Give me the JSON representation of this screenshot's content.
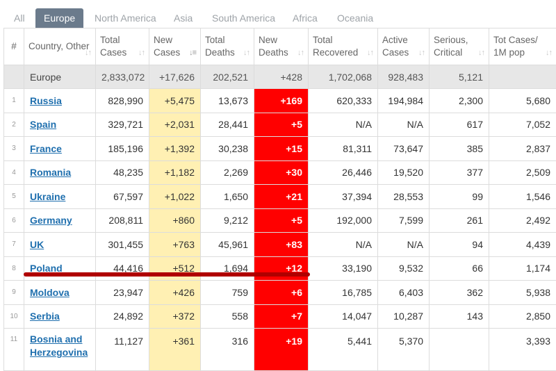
{
  "tabs": [
    "All",
    "Europe",
    "North America",
    "Asia",
    "South America",
    "Africa",
    "Oceania"
  ],
  "active_tab": "Europe",
  "headers": [
    "#",
    "Country, Other",
    "Total Cases",
    "New Cases",
    "Total Deaths",
    "New Deaths",
    "Total Recovered",
    "Active Cases",
    "Serious, Critical",
    "Tot Cases/ 1M pop"
  ],
  "total_row": {
    "country": "Europe",
    "total_cases": "2,833,072",
    "new_cases": "+17,626",
    "total_deaths": "202,521",
    "new_deaths": "+428",
    "total_recovered": "1,702,068",
    "active_cases": "928,483",
    "serious": "5,121",
    "per_million": ""
  },
  "rows": [
    {
      "num": "1",
      "country": "Russia",
      "total_cases": "828,990",
      "new_cases": "+5,475",
      "total_deaths": "13,673",
      "new_deaths": "+169",
      "total_recovered": "620,333",
      "active_cases": "194,984",
      "serious": "2,300",
      "per_million": "5,680"
    },
    {
      "num": "2",
      "country": "Spain",
      "total_cases": "329,721",
      "new_cases": "+2,031",
      "total_deaths": "28,441",
      "new_deaths": "+5",
      "total_recovered": "N/A",
      "active_cases": "N/A",
      "serious": "617",
      "per_million": "7,052"
    },
    {
      "num": "3",
      "country": "France",
      "total_cases": "185,196",
      "new_cases": "+1,392",
      "total_deaths": "30,238",
      "new_deaths": "+15",
      "total_recovered": "81,311",
      "active_cases": "73,647",
      "serious": "385",
      "per_million": "2,837"
    },
    {
      "num": "4",
      "country": "Romania",
      "total_cases": "48,235",
      "new_cases": "+1,182",
      "total_deaths": "2,269",
      "new_deaths": "+30",
      "total_recovered": "26,446",
      "active_cases": "19,520",
      "serious": "377",
      "per_million": "2,509"
    },
    {
      "num": "5",
      "country": "Ukraine",
      "total_cases": "67,597",
      "new_cases": "+1,022",
      "total_deaths": "1,650",
      "new_deaths": "+21",
      "total_recovered": "37,394",
      "active_cases": "28,553",
      "serious": "99",
      "per_million": "1,546"
    },
    {
      "num": "6",
      "country": "Germany",
      "total_cases": "208,811",
      "new_cases": "+860",
      "total_deaths": "9,212",
      "new_deaths": "+5",
      "total_recovered": "192,000",
      "active_cases": "7,599",
      "serious": "261",
      "per_million": "2,492"
    },
    {
      "num": "7",
      "country": "UK",
      "total_cases": "301,455",
      "new_cases": "+763",
      "total_deaths": "45,961",
      "new_deaths": "+83",
      "total_recovered": "N/A",
      "active_cases": "N/A",
      "serious": "94",
      "per_million": "4,439"
    },
    {
      "num": "8",
      "country": "Poland",
      "total_cases": "44,416",
      "new_cases": "+512",
      "total_deaths": "1,694",
      "new_deaths": "+12",
      "total_recovered": "33,190",
      "active_cases": "9,532",
      "serious": "66",
      "per_million": "1,174"
    },
    {
      "num": "9",
      "country": "Moldova",
      "total_cases": "23,947",
      "new_cases": "+426",
      "total_deaths": "759",
      "new_deaths": "+6",
      "total_recovered": "16,785",
      "active_cases": "6,403",
      "serious": "362",
      "per_million": "5,938"
    },
    {
      "num": "10",
      "country": "Serbia",
      "total_cases": "24,892",
      "new_cases": "+372",
      "total_deaths": "558",
      "new_deaths": "+7",
      "total_recovered": "14,047",
      "active_cases": "10,287",
      "serious": "143",
      "per_million": "2,850"
    },
    {
      "num": "11",
      "country": "Bosnia and Herzegovina",
      "total_cases": "11,127",
      "new_cases": "+361",
      "total_deaths": "316",
      "new_deaths": "+19",
      "total_recovered": "5,441",
      "active_cases": "5,370",
      "serious": "",
      "per_million": "3,393"
    }
  ],
  "colors": {
    "active_tab": "#6b7b8c",
    "new_cases_bg": "#fff0b3",
    "new_deaths_bg": "#ff0000",
    "link": "#1f6fae",
    "annotation_line": "#b00000"
  }
}
